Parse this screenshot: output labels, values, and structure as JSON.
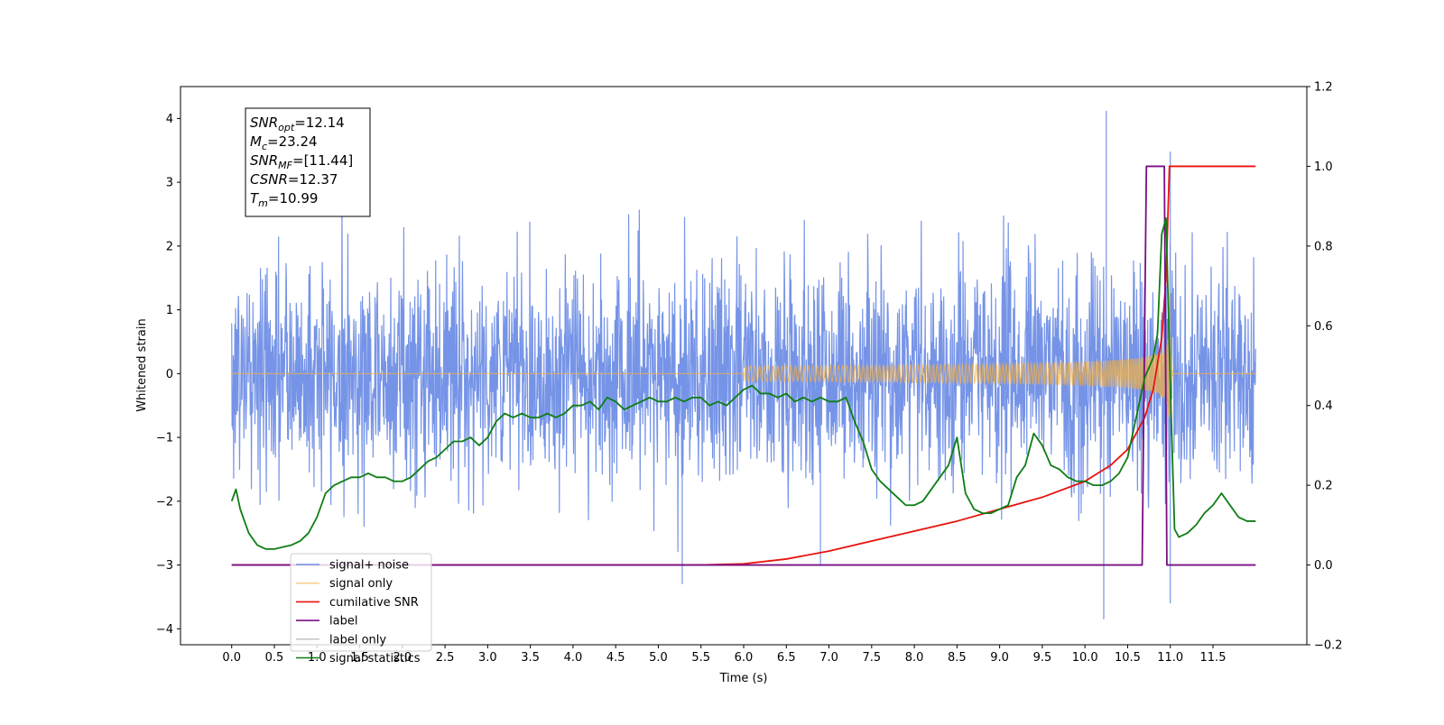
{
  "chart_data": {
    "type": "line",
    "title": "",
    "xlabel": "Time (s)",
    "ylabel": "Whitened strain",
    "y2label": "",
    "xlim": [
      -0.6,
      12.6
    ],
    "ylim": [
      -4.25,
      4.5
    ],
    "y2lim": [
      -0.2,
      1.2
    ],
    "x_ticks": [
      "0.0",
      "0.5",
      "1.0",
      "1.5",
      "2.0",
      "2.5",
      "3.0",
      "3.5",
      "4.0",
      "4.5",
      "5.0",
      "5.5",
      "6.0",
      "6.5",
      "7.0",
      "7.5",
      "8.0",
      "8.5",
      "9.0",
      "9.5",
      "10.0",
      "10.5",
      "11.0",
      "11.5"
    ],
    "y_ticks": [
      "−4",
      "−3",
      "−2",
      "−1",
      "0",
      "1",
      "2",
      "3",
      "4"
    ],
    "y2_ticks": [
      "−0.2",
      "0.0",
      "0.2",
      "0.4",
      "0.6",
      "0.8",
      "1.0",
      "1.2"
    ],
    "grid": false,
    "legend_position": "bottom-left",
    "annotation": {
      "lines": [
        {
          "sym": "SNR",
          "sub": "opt",
          "value": "=12.14"
        },
        {
          "sym": "M",
          "sub": "c",
          "value": "=23.24"
        },
        {
          "sym": "SNR",
          "sub": "MF",
          "value": "=[11.44]"
        },
        {
          "sym": "CSNR",
          "sub": "",
          "value": "=12.37"
        },
        {
          "sym": "T",
          "sub": "m",
          "value": "=10.99"
        }
      ]
    },
    "series": [
      {
        "name": "signal+ noise",
        "color": "#6f8ee6",
        "axis": "left",
        "kind": "noise",
        "x_range": [
          0.0,
          12.0
        ],
        "std": 0.85,
        "peak": 4.12,
        "trough": -3.85
      },
      {
        "name": "signal only",
        "color": "#f5b041",
        "axis": "left",
        "kind": "chirp",
        "x_range": [
          0.0,
          12.0
        ],
        "merger_time": 10.99,
        "peak_amplitude": 1.6
      },
      {
        "name": "cumilative SNR",
        "color": "#e8120e",
        "axis": "right",
        "x": [
          0.0,
          5.5,
          6.0,
          6.5,
          7.0,
          7.5,
          8.0,
          8.5,
          9.0,
          9.5,
          10.0,
          10.3,
          10.5,
          10.7,
          10.8,
          10.9,
          10.95,
          10.99,
          11.0,
          12.0
        ],
        "y": [
          0.0,
          0.0,
          0.003,
          0.015,
          0.035,
          0.06,
          0.085,
          0.11,
          0.14,
          0.17,
          0.21,
          0.25,
          0.29,
          0.37,
          0.44,
          0.57,
          0.72,
          1.0,
          1.0,
          1.0
        ]
      },
      {
        "name": "label",
        "color": "#7a0f82",
        "axis": "right",
        "x": [
          0.0,
          10.67,
          10.72,
          10.93,
          10.96,
          12.0
        ],
        "y": [
          0.0,
          0.0,
          1.0,
          1.0,
          0.0,
          0.0
        ]
      },
      {
        "name": "label only",
        "color": "#c8c8c8",
        "axis": "right",
        "x": [],
        "y": []
      },
      {
        "name": "signal statistics",
        "color": "#0e7d14",
        "axis": "right",
        "x": [
          0.0,
          0.05,
          0.1,
          0.2,
          0.3,
          0.4,
          0.5,
          0.6,
          0.7,
          0.8,
          0.9,
          1.0,
          1.1,
          1.2,
          1.3,
          1.4,
          1.5,
          1.6,
          1.7,
          1.8,
          1.9,
          2.0,
          2.1,
          2.2,
          2.3,
          2.4,
          2.5,
          2.6,
          2.7,
          2.8,
          2.9,
          3.0,
          3.1,
          3.2,
          3.3,
          3.4,
          3.5,
          3.6,
          3.7,
          3.8,
          3.9,
          4.0,
          4.1,
          4.2,
          4.3,
          4.4,
          4.5,
          4.6,
          4.7,
          4.8,
          4.9,
          5.0,
          5.1,
          5.2,
          5.3,
          5.4,
          5.5,
          5.6,
          5.7,
          5.8,
          5.9,
          6.0,
          6.1,
          6.2,
          6.3,
          6.4,
          6.5,
          6.6,
          6.7,
          6.8,
          6.9,
          7.0,
          7.1,
          7.2,
          7.3,
          7.4,
          7.5,
          7.6,
          7.7,
          7.8,
          7.9,
          8.0,
          8.1,
          8.2,
          8.3,
          8.4,
          8.5,
          8.6,
          8.7,
          8.8,
          8.9,
          9.0,
          9.1,
          9.2,
          9.3,
          9.4,
          9.5,
          9.6,
          9.7,
          9.8,
          9.9,
          10.0,
          10.1,
          10.2,
          10.3,
          10.4,
          10.5,
          10.6,
          10.7,
          10.8,
          10.85,
          10.9,
          10.95,
          11.0,
          11.05,
          11.1,
          11.2,
          11.3,
          11.4,
          11.5,
          11.6,
          11.7,
          11.8,
          11.9,
          12.0
        ],
        "y": [
          0.16,
          0.19,
          0.14,
          0.08,
          0.05,
          0.04,
          0.04,
          0.045,
          0.05,
          0.06,
          0.08,
          0.12,
          0.18,
          0.2,
          0.21,
          0.22,
          0.22,
          0.23,
          0.22,
          0.22,
          0.21,
          0.21,
          0.22,
          0.24,
          0.26,
          0.27,
          0.29,
          0.31,
          0.31,
          0.32,
          0.3,
          0.32,
          0.36,
          0.38,
          0.37,
          0.38,
          0.37,
          0.37,
          0.38,
          0.37,
          0.38,
          0.4,
          0.4,
          0.41,
          0.39,
          0.42,
          0.41,
          0.39,
          0.4,
          0.41,
          0.42,
          0.41,
          0.41,
          0.42,
          0.41,
          0.42,
          0.42,
          0.4,
          0.41,
          0.4,
          0.42,
          0.44,
          0.45,
          0.43,
          0.43,
          0.42,
          0.43,
          0.41,
          0.42,
          0.41,
          0.42,
          0.41,
          0.41,
          0.42,
          0.36,
          0.31,
          0.24,
          0.21,
          0.19,
          0.17,
          0.15,
          0.15,
          0.16,
          0.19,
          0.22,
          0.25,
          0.32,
          0.18,
          0.14,
          0.13,
          0.13,
          0.14,
          0.15,
          0.22,
          0.25,
          0.33,
          0.3,
          0.25,
          0.24,
          0.22,
          0.21,
          0.21,
          0.2,
          0.2,
          0.21,
          0.23,
          0.27,
          0.37,
          0.47,
          0.52,
          0.58,
          0.83,
          0.87,
          0.45,
          0.09,
          0.07,
          0.08,
          0.1,
          0.13,
          0.15,
          0.18,
          0.15,
          0.12,
          0.11,
          0.11
        ]
      }
    ]
  }
}
